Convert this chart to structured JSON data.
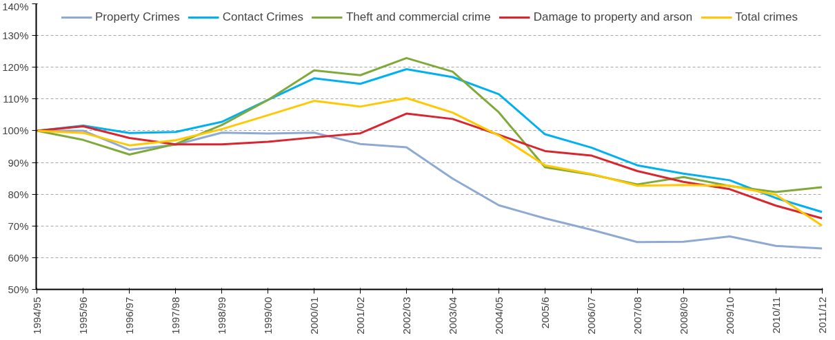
{
  "chart_data": {
    "type": "line",
    "categories": [
      "1994/95",
      "1995/96",
      "1996/97",
      "1997/98",
      "1998/99",
      "1999/00",
      "2000/01",
      "2001/02",
      "2002/03",
      "2003/04",
      "2004/05",
      "2005/6",
      "2006/07",
      "2007/08",
      "2008/09",
      "2009/10",
      "2010/11",
      "2011/12"
    ],
    "series": [
      {
        "name": "Property Crimes",
        "color": "#8ea9d4",
        "values": [
          100,
          100,
          94,
          95.6,
          99.4,
          99.1,
          99.4,
          95.8,
          94.8,
          84.9,
          76.5,
          72.4,
          68.8,
          64.9,
          65,
          66.7,
          63.7,
          62.9
        ]
      },
      {
        "name": "Contact Crimes",
        "color": "#00b0f0",
        "values": [
          100,
          101.6,
          99.3,
          99.6,
          102.8,
          109.7,
          116.5,
          114.8,
          119.4,
          116.9,
          111.5,
          98.9,
          94.7,
          89.1,
          86.5,
          84.4,
          78.8,
          74.4
        ]
      },
      {
        "name": "Theft and commercial crime",
        "color": "#7faa3a",
        "values": [
          100,
          97.1,
          92.5,
          95.8,
          101.8,
          109.7,
          119,
          117.5,
          122.9,
          118.6,
          105.8,
          88.5,
          86.2,
          83.1,
          85.4,
          82.6,
          80.7,
          82.2
        ]
      },
      {
        "name": "Damage to property and arson",
        "color": "#d9262e",
        "values": [
          100,
          101.4,
          97.7,
          95.7,
          95.7,
          96.5,
          97.9,
          99.2,
          105.4,
          103.7,
          98.7,
          93.6,
          92.2,
          87.3,
          83.9,
          81.6,
          76.4,
          72.4
        ]
      },
      {
        "name": "Total crimes",
        "color": "#ffc800",
        "values": [
          100,
          99.3,
          95.4,
          97,
          100.5,
          104.9,
          109.4,
          107.6,
          110.3,
          105.7,
          98.5,
          89.1,
          86.4,
          82.7,
          82.9,
          82.7,
          79.8,
          70.1
        ]
      }
    ],
    "ylim": [
      50,
      140
    ],
    "yticks": [
      {
        "value": 50,
        "label": "50%"
      },
      {
        "value": 60,
        "label": "60%"
      },
      {
        "value": 70,
        "label": "70%"
      },
      {
        "value": 80,
        "label": "80%"
      },
      {
        "value": 90,
        "label": "90%"
      },
      {
        "value": 100,
        "label": "100%"
      },
      {
        "value": 110,
        "label": "110%"
      },
      {
        "value": 120,
        "label": "120%"
      },
      {
        "value": 130,
        "label": "130%"
      },
      {
        "value": 140,
        "label": "140%"
      }
    ],
    "grid": "y",
    "legend": "top",
    "marker": "none",
    "line_style": "solid"
  }
}
